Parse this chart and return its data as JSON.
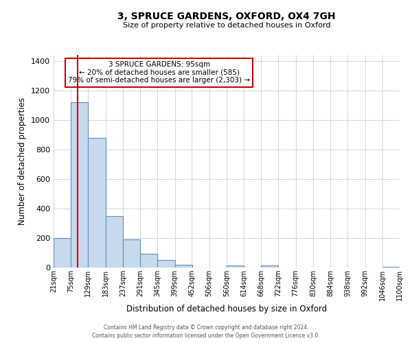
{
  "title": "3, SPRUCE GARDENS, OXFORD, OX4 7GH",
  "subtitle": "Size of property relative to detached houses in Oxford",
  "xlabel": "Distribution of detached houses by size in Oxford",
  "ylabel": "Number of detached properties",
  "bin_labels": [
    "21sqm",
    "75sqm",
    "129sqm",
    "183sqm",
    "237sqm",
    "291sqm",
    "345sqm",
    "399sqm",
    "452sqm",
    "506sqm",
    "560sqm",
    "614sqm",
    "668sqm",
    "722sqm",
    "776sqm",
    "830sqm",
    "884sqm",
    "938sqm",
    "992sqm",
    "1046sqm",
    "1100sqm"
  ],
  "bar_heights": [
    200,
    1120,
    880,
    350,
    190,
    95,
    52,
    20,
    0,
    0,
    15,
    0,
    13,
    0,
    0,
    0,
    0,
    0,
    0,
    5,
    0
  ],
  "bar_color": "#c8d9ee",
  "bar_edge_color": "#5a8fc0",
  "property_line_x": 95,
  "bin_edges": [
    21,
    75,
    129,
    183,
    237,
    291,
    345,
    399,
    452,
    506,
    560,
    614,
    668,
    722,
    776,
    830,
    884,
    938,
    992,
    1046,
    1100
  ],
  "vline_color": "#cc0000",
  "annotation_line1": "3 SPRUCE GARDENS: 95sqm",
  "annotation_line2": "← 20% of detached houses are smaller (585)",
  "annotation_line3": "79% of semi-detached houses are larger (2,303) →",
  "annotation_box_facecolor": "#ffffff",
  "annotation_box_edgecolor": "#cc0000",
  "footer_line1": "Contains HM Land Registry data © Crown copyright and database right 2024.",
  "footer_line2": "Contains public sector information licensed under the Open Government Licence v3.0.",
  "ylim": [
    0,
    1440
  ],
  "yticks": [
    0,
    200,
    400,
    600,
    800,
    1000,
    1200,
    1400
  ],
  "grid_color": "#c8d0dc",
  "background_color": "#ffffff",
  "fig_width": 6.0,
  "fig_height": 5.0
}
